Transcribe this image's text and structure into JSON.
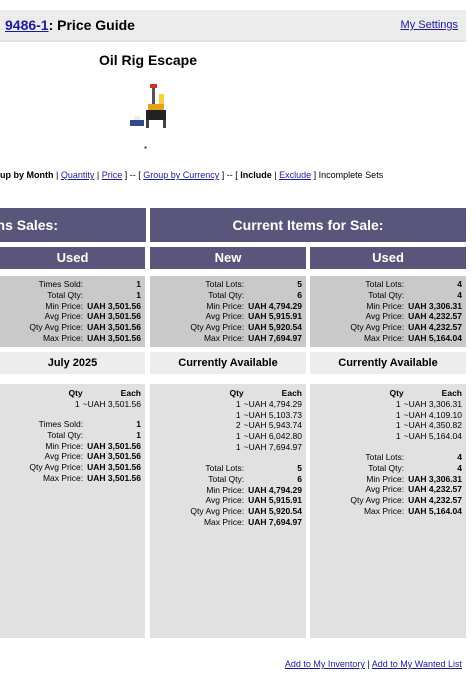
{
  "header": {
    "set_number": "9486-1",
    "title_suffix": ": Price Guide",
    "settings_link": "My Settings"
  },
  "set": {
    "name": "Oil Rig Escape",
    "image_icon": "oil-rig-set-image",
    "dot": "*"
  },
  "options": {
    "group_by_month": "up by Month",
    "sep1": " | ",
    "quantity": "Quantity",
    "sep2": " | ",
    "price": "Price",
    "mid1": " ] -- [ ",
    "group_by_currency": "Group by Currency",
    "mid2": " ] -- [ ",
    "include": "Include",
    "sep3": " | ",
    "exclude": "Exclude",
    "tail": " ] Incomplete Sets"
  },
  "sales": {
    "heading": "ns Sales:",
    "used_label": "Used",
    "summary": {
      "times_sold_k": "Times Sold:",
      "times_sold": "1",
      "total_qty_k": "Total Qty:",
      "total_qty": "1",
      "min_k": "Min Price:",
      "min": "UAH 3,501.56",
      "avg_k": "Avg Price:",
      "avg": "UAH 3,501.56",
      "qty_avg_k": "Qty Avg Price:",
      "qty_avg": "UAH 3,501.56",
      "max_k": "Max Price:",
      "max": "UAH 3,501.56"
    },
    "month_label": "July 2025",
    "col_qty": "Qty",
    "col_each": "Each",
    "lots": [
      {
        "qty": "1",
        "each": "~UAH 3,501.56"
      }
    ],
    "month_summary": {
      "times_sold_k": "Times Sold:",
      "times_sold": "1",
      "total_qty_k": "Total Qty:",
      "total_qty": "1",
      "min_k": "Min Price:",
      "min": "UAH 3,501.56",
      "avg_k": "Avg Price:",
      "avg": "UAH 3,501.56",
      "qty_avg_k": "Qty Avg Price:",
      "qty_avg": "UAH 3,501.56",
      "max_k": "Max Price:",
      "max": "UAH 3,501.56"
    }
  },
  "current": {
    "heading": "Current Items for Sale:",
    "new": {
      "label": "New",
      "summary": {
        "lots_k": "Total Lots:",
        "lots": "5",
        "qty_k": "Total Qty:",
        "qty": "6",
        "min_k": "Min Price:",
        "min": "UAH 4,794.29",
        "avg_k": "Avg Price:",
        "avg": "UAH 5,915.91",
        "qty_avg_k": "Qty Avg Price:",
        "qty_avg": "UAH 5,920.54",
        "max_k": "Max Price:",
        "max": "UAH 7,694.97"
      },
      "band": "Currently Available",
      "col_qty": "Qty",
      "col_each": "Each",
      "lots": [
        {
          "qty": "1",
          "each": "~UAH 4,794.29"
        },
        {
          "qty": "1",
          "each": "~UAH 5,103.73"
        },
        {
          "qty": "2",
          "each": "~UAH 5,943.74"
        },
        {
          "qty": "1",
          "each": "~UAH 6,042.80"
        },
        {
          "qty": "1",
          "each": "~UAH 7,694.97"
        }
      ],
      "detail_summary": {
        "lots_k": "Total Lots:",
        "lots": "5",
        "qty_k": "Total Qty:",
        "qty": "6",
        "min_k": "Min Price:",
        "min": "UAH 4,794.29",
        "avg_k": "Avg Price:",
        "avg": "UAH 5,915.91",
        "qty_avg_k": "Qty Avg Price:",
        "qty_avg": "UAH 5,920.54",
        "max_k": "Max Price:",
        "max": "UAH 7,694.97"
      }
    },
    "used": {
      "label": "Used",
      "summary": {
        "lots_k": "Total Lots:",
        "lots": "4",
        "qty_k": "Total Qty:",
        "qty": "4",
        "min_k": "Min Price:",
        "min": "UAH 3,306.31",
        "avg_k": "Avg Price:",
        "avg": "UAH 4,232.57",
        "qty_avg_k": "Qty Avg Price:",
        "qty_avg": "UAH 4,232.57",
        "max_k": "Max Price:",
        "max": "UAH 5,164.04"
      },
      "band": "Currently Available",
      "col_qty": "Qty",
      "col_each": "Each",
      "lots": [
        {
          "qty": "1",
          "each": "~UAH 3,306.31"
        },
        {
          "qty": "1",
          "each": "~UAH 4,109.10"
        },
        {
          "qty": "1",
          "each": "~UAH 4,350.82"
        },
        {
          "qty": "1",
          "each": "~UAH 5,164.04"
        }
      ],
      "detail_summary": {
        "lots_k": "Total Lots:",
        "lots": "4",
        "qty_k": "Total Qty:",
        "qty": "4",
        "min_k": "Min Price:",
        "min": "UAH 3,306.31",
        "avg_k": "Avg Price:",
        "avg": "UAH 4,232.57",
        "qty_avg_k": "Qty Avg Price:",
        "qty_avg": "UAH 4,232.57",
        "max_k": "Max Price:",
        "max": "UAH 5,164.04"
      }
    }
  },
  "footer": {
    "add_inventory": "Add to My Inventory",
    "sep": " | ",
    "add_wanted": "Add to My Wanted List"
  }
}
